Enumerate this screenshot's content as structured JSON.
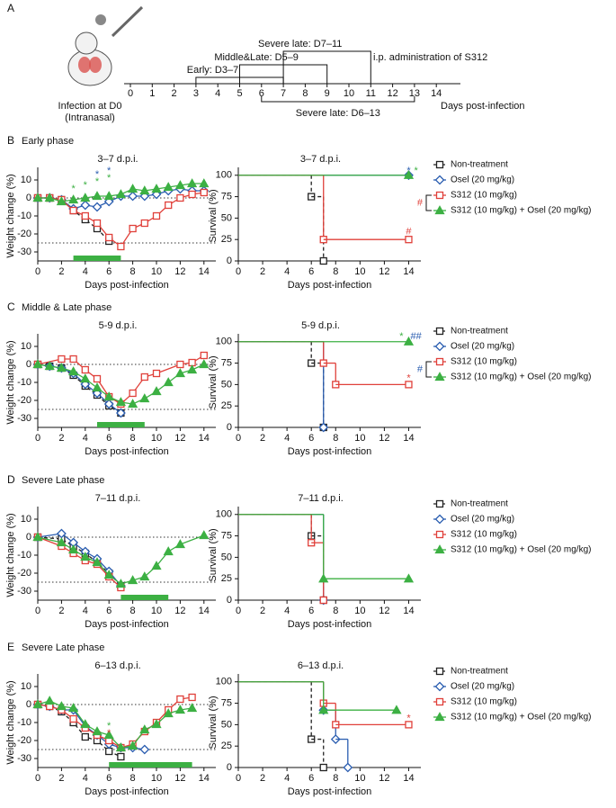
{
  "timeline": {
    "panel": "A",
    "xticks": [
      0,
      1,
      2,
      3,
      4,
      5,
      6,
      7,
      8,
      9,
      10,
      11,
      12,
      13,
      14
    ],
    "xlabel": "Days post-infection",
    "infection": [
      "Infection at D0",
      "(Intranasal)"
    ],
    "note": "i.p. administration of S312",
    "regimens": [
      {
        "label": "Early: D3–7",
        "start": 3,
        "end": 7,
        "side": "above"
      },
      {
        "label": "Middle&Late: D5–9",
        "start": 5,
        "end": 9,
        "side": "above"
      },
      {
        "label": "Severe late: D7–11",
        "start": 7,
        "end": 11,
        "side": "above"
      },
      {
        "label": "Severe late: D6–13",
        "start": 6,
        "end": 13,
        "side": "below"
      }
    ]
  },
  "chart_data": [
    {
      "type": "line",
      "panel": "B",
      "title": "Early phase",
      "subtitle": "3–7 d.p.i.",
      "ylabel": "Weight change (%)",
      "xlabel": "Days post-infection",
      "xlim": [
        0,
        15
      ],
      "xticks": [
        0,
        2,
        4,
        6,
        8,
        10,
        12,
        14
      ],
      "ylim": [
        -35,
        15
      ],
      "yticks": [
        10,
        0,
        -10,
        -20,
        -30
      ],
      "hlines": [
        0,
        -25
      ],
      "treatment": [
        3,
        7
      ],
      "treatment_color": "#3cb043",
      "series": [
        {
          "color": "#222222",
          "marker": "square",
          "dashed": true,
          "x": [
            0,
            1,
            2,
            3,
            4,
            5,
            6
          ],
          "values": [
            0,
            0,
            -1,
            -7,
            -12,
            -17,
            -24
          ]
        },
        {
          "color": "#2a5db0",
          "marker": "diamond",
          "x": [
            0,
            1,
            2,
            3,
            4,
            5,
            6,
            7,
            8,
            9,
            10,
            11,
            12,
            13,
            14
          ],
          "values": [
            0,
            0,
            -1,
            -6,
            -4,
            -5,
            -2,
            1,
            1,
            1,
            2,
            4,
            5,
            4,
            4
          ]
        },
        {
          "color": "#e0403a",
          "marker": "square",
          "x": [
            0,
            1,
            2,
            3,
            4,
            5,
            6,
            7,
            8,
            9,
            10,
            11,
            12,
            13,
            14
          ],
          "values": [
            0,
            0,
            -1,
            -7,
            -10,
            -14,
            -22,
            -27,
            -17,
            -14,
            -10,
            -4,
            0,
            2,
            3
          ]
        },
        {
          "color": "#3cb043",
          "marker": "triangle",
          "x": [
            0,
            1,
            2,
            3,
            4,
            5,
            6,
            7,
            8,
            9,
            10,
            11,
            12,
            13,
            14
          ],
          "values": [
            0,
            0,
            -2,
            -1,
            0,
            1,
            1,
            2,
            5,
            4,
            5,
            6,
            7,
            8,
            8
          ]
        }
      ],
      "annotations": [
        {
          "text": "*",
          "x": 3,
          "y": 5,
          "color": "#3cb043"
        },
        {
          "text": "*",
          "x": 4,
          "y": 7,
          "color": "#3cb043"
        },
        {
          "text": "*",
          "x": 5,
          "y": 9,
          "color": "#3cb043"
        },
        {
          "text": "*",
          "x": 6,
          "y": 11,
          "color": "#3cb043"
        },
        {
          "text": "*",
          "x": 5,
          "y": 13,
          "color": "#2a5db0"
        },
        {
          "text": "*",
          "x": 6,
          "y": 15,
          "color": "#2a5db0"
        }
      ]
    },
    {
      "type": "survival",
      "subtitle": "3–7 d.p.i.",
      "ylabel": "Survival (%)",
      "xlabel": "Days post-infection",
      "xlim": [
        0,
        15
      ],
      "xticks": [
        0,
        2,
        4,
        6,
        8,
        10,
        12,
        14
      ],
      "ylim": [
        0,
        105
      ],
      "yticks": [
        0,
        25,
        50,
        75,
        100
      ],
      "legend": true,
      "legend_note": {
        "text": "#",
        "color": "#e0403a"
      },
      "series": [
        {
          "name": "Non-treatment",
          "color": "#222222",
          "marker": "square",
          "dashed": true,
          "x": [
            0,
            6,
            7
          ],
          "values": [
            100,
            75,
            0
          ]
        },
        {
          "name": "Osel (20 mg/kg)",
          "color": "#2a5db0",
          "marker": "diamond",
          "x": [
            0,
            14
          ],
          "values": [
            100,
            100
          ]
        },
        {
          "name": "S312 (10 mg/kg)",
          "color": "#e0403a",
          "marker": "square",
          "x": [
            0,
            7,
            14
          ],
          "values": [
            100,
            25,
            25
          ]
        },
        {
          "name": "S312 (10 mg/kg) + Osel (20 mg/kg)",
          "color": "#3cb043",
          "marker": "triangle",
          "x": [
            0,
            14
          ],
          "values": [
            100,
            100
          ]
        }
      ],
      "annotations": [
        {
          "text": "*",
          "x": 14,
          "y": 105,
          "color": "#2a5db0"
        },
        {
          "text": "*",
          "x": 14.6,
          "y": 105,
          "color": "#3cb043"
        },
        {
          "text": "#",
          "x": 14,
          "y": 34,
          "color": "#e0403a"
        }
      ]
    },
    {
      "type": "line",
      "panel": "C",
      "title": "Middle & Late phase",
      "subtitle": "5-9 d.p.i.",
      "ylabel": "Weight change (%)",
      "xlabel": "Days post-infection",
      "xlim": [
        0,
        15
      ],
      "xticks": [
        0,
        2,
        4,
        6,
        8,
        10,
        12,
        14
      ],
      "ylim": [
        -35,
        15
      ],
      "yticks": [
        10,
        0,
        -10,
        -20,
        -30
      ],
      "hlines": [
        0,
        -25
      ],
      "treatment": [
        5,
        9
      ],
      "treatment_color": "#3cb043",
      "series": [
        {
          "color": "#222222",
          "marker": "square",
          "dashed": true,
          "x": [
            0,
            1,
            2,
            3,
            4,
            5,
            6,
            7
          ],
          "values": [
            0,
            -1,
            -2,
            -6,
            -12,
            -17,
            -23,
            -27
          ]
        },
        {
          "color": "#2a5db0",
          "marker": "diamond",
          "x": [
            0,
            1,
            2,
            3,
            4,
            5,
            6,
            7
          ],
          "values": [
            0,
            -1,
            -2,
            -5,
            -11,
            -16,
            -22,
            -27
          ]
        },
        {
          "color": "#e0403a",
          "marker": "square",
          "x": [
            0,
            2,
            3,
            4,
            5,
            6,
            7,
            8,
            9,
            10,
            12,
            13,
            14
          ],
          "values": [
            0,
            3,
            3,
            -3,
            -8,
            -18,
            -22,
            -16,
            -7,
            -5,
            0,
            1,
            5
          ]
        },
        {
          "color": "#3cb043",
          "marker": "triangle",
          "x": [
            0,
            1,
            2,
            3,
            4,
            5,
            6,
            7,
            8,
            9,
            10,
            11,
            12,
            13,
            14
          ],
          "values": [
            0,
            -1,
            -2,
            -4,
            -8,
            -13,
            -18,
            -21,
            -22,
            -19,
            -15,
            -10,
            -5,
            -3,
            0
          ]
        }
      ],
      "annotations": []
    },
    {
      "type": "survival",
      "subtitle": "5-9 d.p.i.",
      "ylabel": "Survival (%)",
      "xlabel": "Days post-infection",
      "xlim": [
        0,
        15
      ],
      "xticks": [
        0,
        2,
        4,
        6,
        8,
        10,
        12,
        14
      ],
      "ylim": [
        0,
        105
      ],
      "yticks": [
        0,
        25,
        50,
        75,
        100
      ],
      "legend": true,
      "legend_note": {
        "text": "#",
        "color": "#2a5db0"
      },
      "series": [
        {
          "name": "Non-treatment",
          "color": "#222222",
          "marker": "square",
          "dashed": true,
          "x": [
            0,
            6,
            7
          ],
          "values": [
            100,
            75,
            0
          ]
        },
        {
          "name": "Osel (20 mg/kg)",
          "color": "#2a5db0",
          "marker": "diamond",
          "x": [
            0,
            7
          ],
          "values": [
            100,
            0
          ]
        },
        {
          "name": "S312 (10 mg/kg)",
          "color": "#e0403a",
          "marker": "square",
          "x": [
            0,
            7,
            8,
            14
          ],
          "values": [
            100,
            75,
            50,
            50
          ]
        },
        {
          "name": "S312 (10 mg/kg) + Osel (20 mg/kg)",
          "color": "#3cb043",
          "marker": "triangle",
          "x": [
            0,
            14
          ],
          "values": [
            100,
            100
          ]
        }
      ],
      "annotations": [
        {
          "text": "*",
          "x": 13.4,
          "y": 106,
          "color": "#3cb043"
        },
        {
          "text": "##",
          "x": 14.6,
          "y": 106,
          "color": "#2a5db0"
        },
        {
          "text": "*",
          "x": 14,
          "y": 57,
          "color": "#e0403a"
        }
      ]
    },
    {
      "type": "line",
      "panel": "D",
      "title": "Severe Late phase",
      "subtitle": "7–11 d.p.i.",
      "ylabel": "Weight change (%)",
      "xlabel": "Days post-infection",
      "xlim": [
        0,
        15
      ],
      "xticks": [
        0,
        2,
        4,
        6,
        8,
        10,
        12,
        14
      ],
      "ylim": [
        -35,
        15
      ],
      "yticks": [
        10,
        0,
        -10,
        -20,
        -30
      ],
      "hlines": [
        0,
        -25
      ],
      "treatment": [
        7,
        11
      ],
      "treatment_color": "#3cb043",
      "series": [
        {
          "color": "#222222",
          "marker": "square",
          "dashed": true,
          "x": [
            0,
            2,
            3,
            4,
            5,
            6,
            7
          ],
          "values": [
            0,
            -1,
            -5,
            -9,
            -14,
            -20,
            -27
          ]
        },
        {
          "color": "#2a5db0",
          "marker": "diamond",
          "x": [
            0,
            2,
            3,
            4,
            5,
            6,
            7
          ],
          "values": [
            0,
            2,
            -3,
            -8,
            -12,
            -19,
            -27
          ]
        },
        {
          "color": "#e0403a",
          "marker": "square",
          "x": [
            0,
            2,
            3,
            4,
            5,
            6,
            7
          ],
          "values": [
            0,
            -5,
            -9,
            -13,
            -15,
            -22,
            -28
          ]
        },
        {
          "color": "#3cb043",
          "marker": "triangle",
          "x": [
            0,
            2,
            3,
            4,
            5,
            6,
            7,
            8,
            9,
            10,
            11,
            12,
            14
          ],
          "values": [
            0,
            -3,
            -7,
            -11,
            -14,
            -21,
            -26,
            -24,
            -22,
            -16,
            -8,
            -4,
            1
          ]
        }
      ],
      "annotations": []
    },
    {
      "type": "survival",
      "subtitle": "7–11 d.p.i.",
      "ylabel": "Survival (%)",
      "xlabel": "Days post-infection",
      "xlim": [
        0,
        15
      ],
      "xticks": [
        0,
        2,
        4,
        6,
        8,
        10,
        12,
        14
      ],
      "ylim": [
        0,
        105
      ],
      "yticks": [
        0,
        25,
        50,
        75,
        100
      ],
      "legend": true,
      "series": [
        {
          "name": "Non-treatment",
          "color": "#222222",
          "marker": "square",
          "dashed": true,
          "x": [
            0,
            6,
            7
          ],
          "values": [
            100,
            75,
            0
          ]
        },
        {
          "name": "Osel (20 mg/kg)",
          "color": "#2a5db0",
          "marker": "diamond",
          "x": [
            0,
            7
          ],
          "values": [
            100,
            0
          ]
        },
        {
          "name": "S312 (10 mg/kg)",
          "color": "#e0403a",
          "marker": "square",
          "x": [
            0,
            6,
            7
          ],
          "values": [
            100,
            67,
            0
          ]
        },
        {
          "name": "S312 (10 mg/kg) + Osel (20 mg/kg)",
          "color": "#3cb043",
          "marker": "triangle",
          "x": [
            0,
            7,
            14
          ],
          "values": [
            100,
            25,
            25
          ]
        }
      ],
      "annotations": []
    },
    {
      "type": "line",
      "panel": "E",
      "title": "Severe Late phase",
      "subtitle": "6–13 d.p.i.",
      "ylabel": "Weight change (%)",
      "xlabel": "Days post-infection",
      "xlim": [
        0,
        15
      ],
      "xticks": [
        0,
        2,
        4,
        6,
        8,
        10,
        12,
        14
      ],
      "ylim": [
        -35,
        15
      ],
      "yticks": [
        10,
        0,
        -10,
        -20,
        -30
      ],
      "hlines": [
        0,
        -25
      ],
      "treatment": [
        6,
        13
      ],
      "treatment_color": "#3cb043",
      "series": [
        {
          "color": "#222222",
          "marker": "square",
          "dashed": true,
          "x": [
            0,
            1,
            2,
            3,
            4,
            5,
            6,
            7
          ],
          "values": [
            0,
            -1,
            -4,
            -10,
            -18,
            -20,
            -26,
            -29
          ]
        },
        {
          "color": "#2a5db0",
          "marker": "diamond",
          "x": [
            0,
            1,
            2,
            3,
            4,
            5,
            6,
            7,
            8,
            9
          ],
          "values": [
            0,
            -1,
            -3,
            -3,
            -12,
            -17,
            -22,
            -24,
            -24,
            -25
          ]
        },
        {
          "color": "#e0403a",
          "marker": "square",
          "x": [
            0,
            1,
            2,
            3,
            4,
            5,
            6,
            7,
            8,
            9,
            10,
            11,
            12,
            13
          ],
          "values": [
            0,
            -1,
            -3,
            -8,
            -13,
            -17,
            -20,
            -24,
            -22,
            -15,
            -10,
            -3,
            3,
            4
          ]
        },
        {
          "color": "#3cb043",
          "marker": "triangle",
          "x": [
            0,
            1,
            2,
            3,
            4,
            5,
            6,
            7,
            8,
            9,
            10,
            11,
            12,
            13
          ],
          "values": [
            0,
            2,
            -1,
            -2,
            -11,
            -15,
            -17,
            -24,
            -23,
            -14,
            -11,
            -5,
            -3,
            -2
          ]
        }
      ],
      "annotations": [
        {
          "text": "*",
          "x": 6,
          "y": -12,
          "color": "#3cb043"
        },
        {
          "text": "*",
          "x": 6,
          "y": -16,
          "color": "#e0403a"
        }
      ]
    },
    {
      "type": "survival",
      "subtitle": "6–13 d.p.i.",
      "ylabel": "Survival (%)",
      "xlabel": "Days post-infection",
      "xlim": [
        0,
        15
      ],
      "xticks": [
        0,
        2,
        4,
        6,
        8,
        10,
        12,
        14
      ],
      "ylim": [
        0,
        105
      ],
      "yticks": [
        0,
        25,
        50,
        75,
        100
      ],
      "legend": true,
      "series": [
        {
          "name": "Non-treatment",
          "color": "#222222",
          "marker": "square",
          "dashed": true,
          "x": [
            0,
            6,
            7
          ],
          "values": [
            100,
            33,
            0
          ]
        },
        {
          "name": "Osel (20 mg/kg)",
          "color": "#2a5db0",
          "marker": "diamond",
          "x": [
            0,
            7,
            8,
            9
          ],
          "values": [
            100,
            67,
            33,
            0
          ]
        },
        {
          "name": "S312 (10 mg/kg)",
          "color": "#e0403a",
          "marker": "square",
          "x": [
            0,
            7,
            8,
            14
          ],
          "values": [
            100,
            75,
            50,
            50
          ]
        },
        {
          "name": "S312 (10 mg/kg) + Osel (20 mg/kg)",
          "color": "#3cb043",
          "marker": "triangle",
          "x": [
            0,
            7,
            13
          ],
          "values": [
            100,
            67,
            67
          ]
        }
      ],
      "annotations": [
        {
          "text": "*",
          "x": 14,
          "y": 57,
          "color": "#e0403a"
        }
      ]
    }
  ]
}
